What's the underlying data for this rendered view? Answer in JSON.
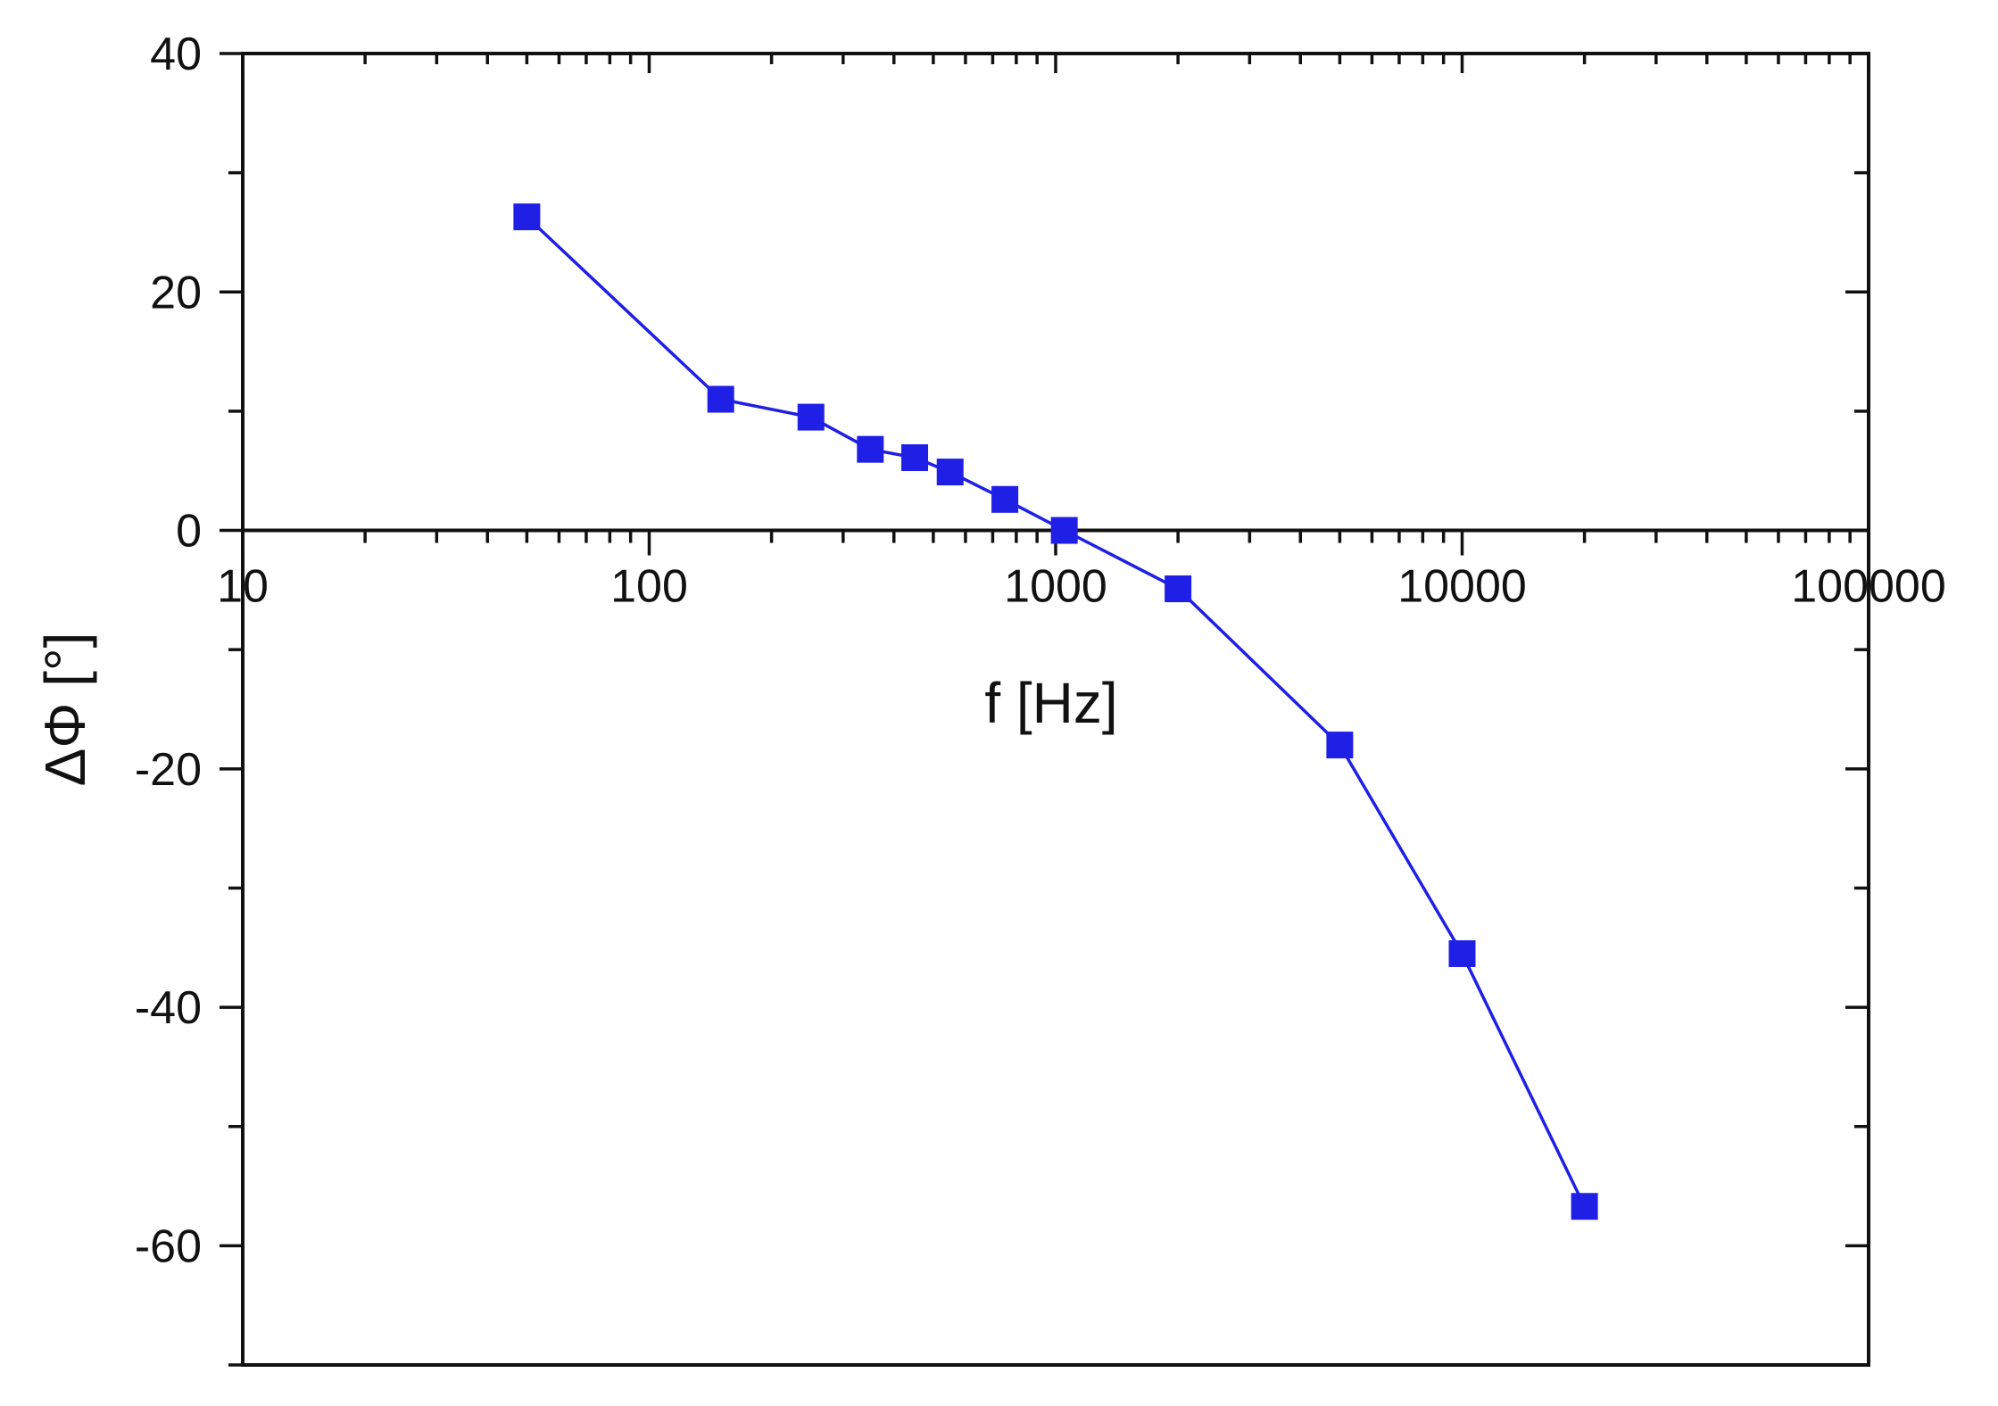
{
  "chart_data": {
    "type": "line",
    "xlabel": "f [Hz]",
    "ylabel": "ΔΦ [°]",
    "x_scale": "log",
    "xlim": [
      10,
      100000
    ],
    "ylim": [
      -70,
      40
    ],
    "x_ticks": [
      "10",
      "100",
      "1000",
      "10000",
      "100000"
    ],
    "y_ticks": [
      "40",
      "20",
      "0",
      "-20",
      "-40",
      "-60"
    ],
    "grid": false,
    "legend": "none",
    "series": [
      {
        "color": "#1f1fe6",
        "marker": "square",
        "x": [
          50,
          150,
          250,
          350,
          450,
          550,
          750,
          1050,
          2000,
          5000,
          10000,
          20000
        ],
        "y": [
          26.3,
          11.0,
          9.5,
          6.8,
          6.1,
          4.9,
          2.6,
          0.0,
          -4.9,
          -18.0,
          -35.5,
          -56.7
        ]
      }
    ]
  }
}
